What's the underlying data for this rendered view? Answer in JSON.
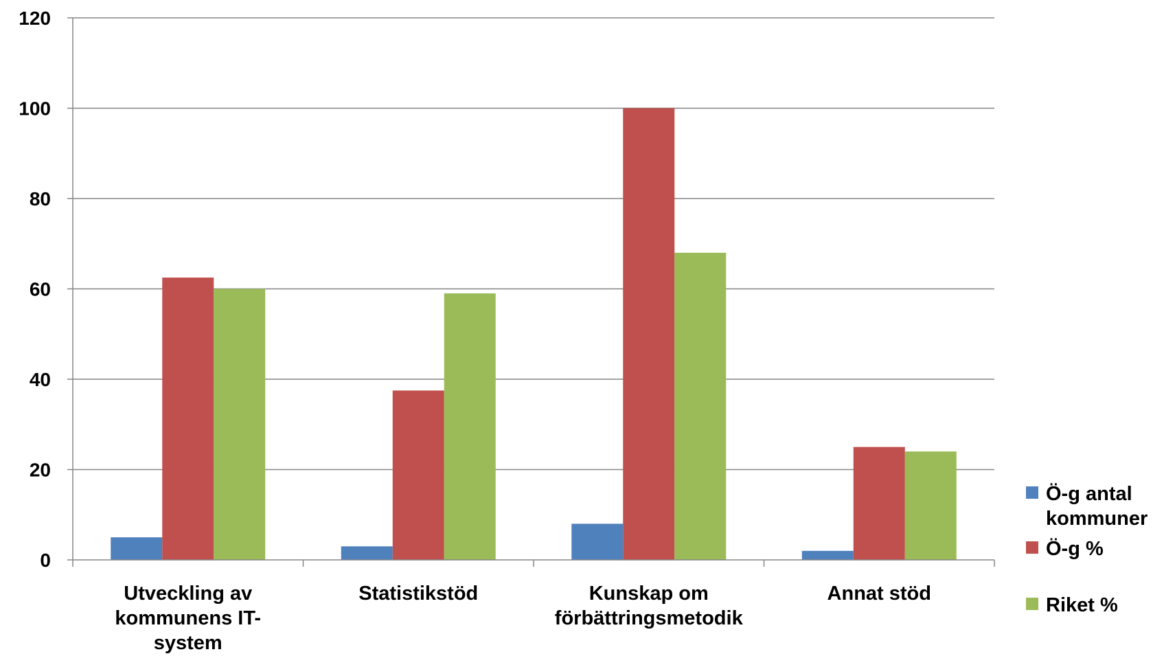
{
  "chart_data": {
    "type": "bar",
    "title": "",
    "xlabel": "",
    "ylabel": "",
    "ylim": [
      0,
      120
    ],
    "yticks": [
      0,
      20,
      40,
      60,
      80,
      100,
      120
    ],
    "grid": true,
    "legend_position": "right",
    "categories": [
      [
        "Utveckling av",
        "kommunens IT-",
        "system"
      ],
      [
        "Statistikstöd"
      ],
      [
        "Kunskap om",
        "förbättringsmetodik"
      ],
      [
        "Annat stöd"
      ]
    ],
    "series": [
      {
        "name": [
          "Ö-g antal",
          "kommuner"
        ],
        "color": "#4F81BD",
        "values": [
          5,
          3,
          8,
          2
        ]
      },
      {
        "name": [
          "Ö-g %"
        ],
        "color": "#C0504D",
        "values": [
          62.5,
          37.5,
          100,
          25
        ]
      },
      {
        "name": [
          "Riket %"
        ],
        "color": "#9BBB59",
        "values": [
          60,
          59,
          68,
          24
        ]
      }
    ]
  }
}
